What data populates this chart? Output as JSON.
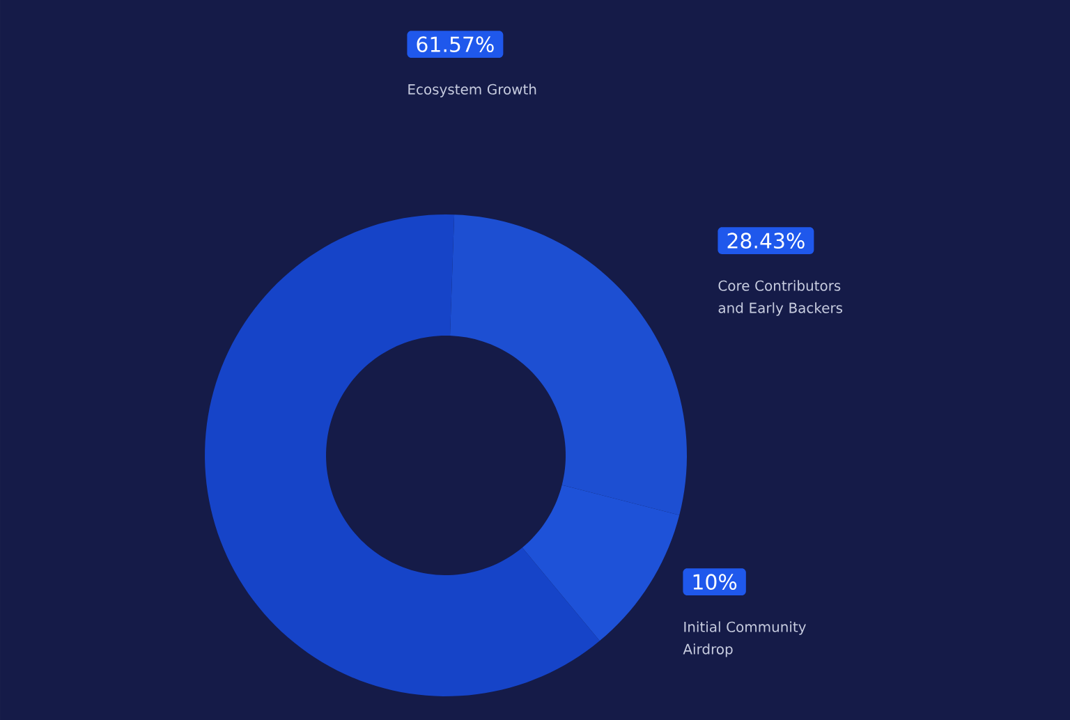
{
  "chart_data": {
    "type": "donut",
    "categories": [
      "Ecosystem Growth",
      "Core Contributors and Early Backers",
      "Initial Community Airdrop"
    ],
    "values": [
      61.57,
      28.43,
      10
    ],
    "value_labels": [
      "61.57%",
      "28.43%",
      "10%"
    ],
    "colors": [
      "#1644c8",
      "#1d4fd2",
      "#1e52d8"
    ]
  }
}
